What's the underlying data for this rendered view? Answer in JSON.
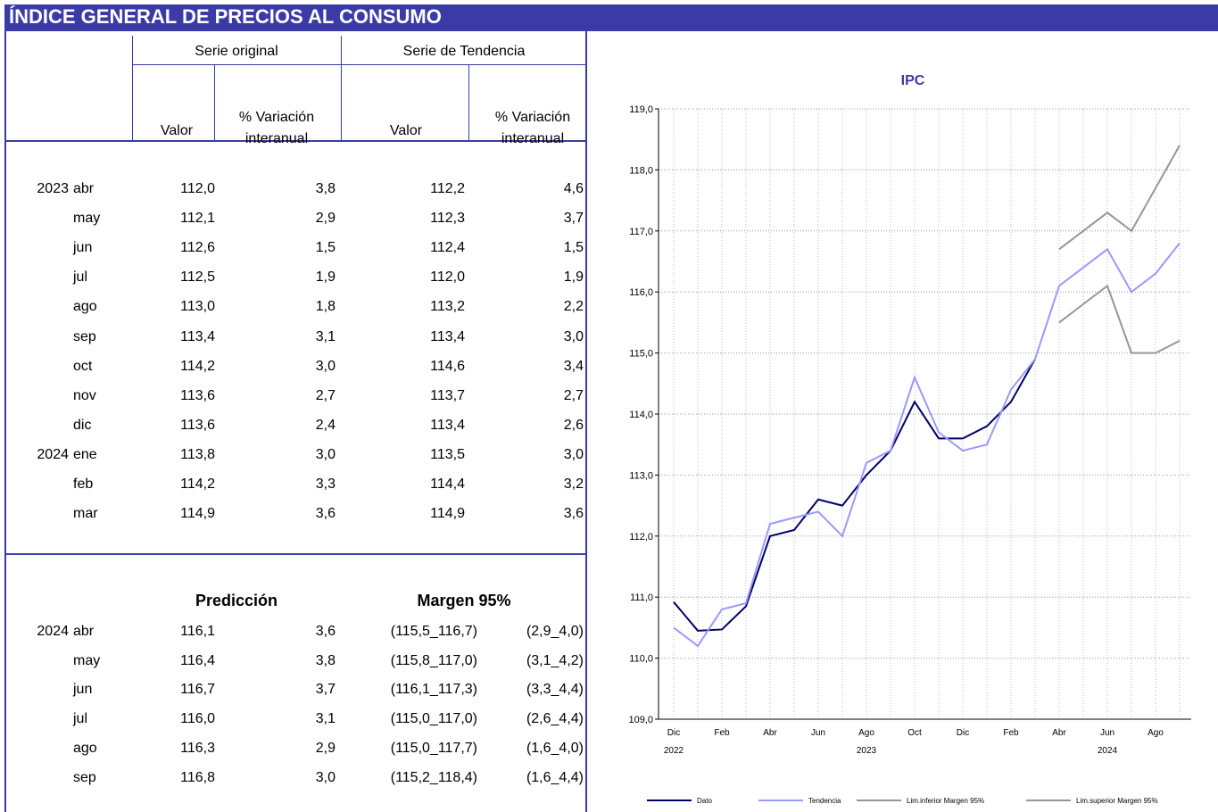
{
  "header": {
    "title": "ÍNDICE GENERAL DE PRECIOS AL CONSUMO"
  },
  "table": {
    "groups": [
      "Serie original",
      "Serie de Tendencia"
    ],
    "columns": [
      "Valor",
      "% Variación\ninteranual",
      "Valor",
      "% Variación\ninteranual"
    ],
    "rows": [
      [
        "2023",
        "abr",
        "112,0",
        "3,8",
        "112,2",
        "4,6"
      ],
      [
        null,
        "may",
        "112,1",
        "2,9",
        "112,3",
        "3,7"
      ],
      [
        null,
        "jun",
        "112,6",
        "1,5",
        "112,4",
        "1,5"
      ],
      [
        null,
        "jul",
        "112,5",
        "1,9",
        "112,0",
        "1,9"
      ],
      [
        null,
        "ago",
        "113,0",
        "1,8",
        "113,2",
        "2,2"
      ],
      [
        null,
        "sep",
        "113,4",
        "3,1",
        "113,4",
        "3,0"
      ],
      [
        null,
        "oct",
        "114,2",
        "3,0",
        "114,6",
        "3,4"
      ],
      [
        null,
        "nov",
        "113,6",
        "2,7",
        "113,7",
        "2,7"
      ],
      [
        null,
        "dic",
        "113,6",
        "2,4",
        "113,4",
        "2,6"
      ],
      [
        "2024",
        "ene",
        "113,8",
        "3,0",
        "113,5",
        "3,0"
      ],
      [
        null,
        "feb",
        "114,2",
        "3,3",
        "114,4",
        "3,2"
      ],
      [
        null,
        "mar",
        "114,9",
        "3,6",
        "114,9",
        "3,6"
      ]
    ]
  },
  "prediction": {
    "headers": [
      "Predicción",
      "Margen 95%"
    ],
    "rows": [
      [
        "2024",
        "abr",
        "116,1",
        "3,6",
        "(115,5_116,7)",
        "(2,9_4,0)"
      ],
      [
        null,
        "may",
        "116,4",
        "3,8",
        "(115,8_117,0)",
        "(3,1_4,2)"
      ],
      [
        null,
        "jun",
        "116,7",
        "3,7",
        "(116,1_117,3)",
        "(3,3_4,4)"
      ],
      [
        null,
        "jul",
        "116,0",
        "3,1",
        "(115,0_117,0)",
        "(2,6_4,4)"
      ],
      [
        null,
        "ago",
        "116,3",
        "2,9",
        "(115,0_117,7)",
        "(1,6_4,0)"
      ],
      [
        null,
        "sep",
        "116,8",
        "3,0",
        "(115,2_118,4)",
        "(1,6_4,4)"
      ]
    ]
  },
  "chart_data": {
    "type": "line",
    "title": "IPC",
    "categories": [
      "Dic",
      null,
      "Feb",
      null,
      "Abr",
      null,
      "Jun",
      null,
      "Ago",
      null,
      "Oct",
      null,
      "Dic",
      null,
      "Feb",
      null,
      "Abr",
      null,
      "Jun",
      null,
      "Ago",
      null
    ],
    "year_categories": [
      "2022",
      null,
      null,
      null,
      null,
      null,
      null,
      null,
      "2023",
      null,
      null,
      null,
      null,
      null,
      null,
      null,
      null,
      null,
      "2024",
      null,
      null,
      null
    ],
    "ylim": [
      109,
      119
    ],
    "yticks": [
      {
        "value": 109,
        "label": "109,0"
      },
      {
        "value": 110,
        "label": "110,0"
      },
      {
        "value": 111,
        "label": "111,0"
      },
      {
        "value": 112,
        "label": "112,0"
      },
      {
        "value": 113,
        "label": "113,0"
      },
      {
        "value": 114,
        "label": "114,0"
      },
      {
        "value": 115,
        "label": "115,0"
      },
      {
        "value": 116,
        "label": "116,0"
      },
      {
        "value": 117,
        "label": "117,0"
      },
      {
        "value": 118,
        "label": "118,0"
      },
      {
        "value": 119,
        "label": "119,0"
      }
    ],
    "grid": true,
    "legend": "bottom",
    "series": [
      {
        "name": "Dato",
        "color": "#000066",
        "values": [
          110.92,
          110.45,
          110.47,
          110.85,
          112.0,
          112.1,
          112.6,
          112.5,
          113.0,
          113.4,
          114.2,
          113.6,
          113.6,
          113.8,
          114.2,
          114.9,
          null,
          null,
          null,
          null,
          null,
          null
        ]
      },
      {
        "name": "Tendencia",
        "color": "#9999ff",
        "values": [
          110.5,
          110.2,
          110.8,
          110.9,
          112.2,
          112.3,
          112.4,
          112.0,
          113.2,
          113.4,
          114.6,
          113.7,
          113.4,
          113.5,
          114.4,
          114.9,
          116.1,
          116.4,
          116.7,
          116.0,
          116.3,
          116.8
        ]
      },
      {
        "name": "Lim.inferior Margen 95%",
        "color": "#969696",
        "values": [
          null,
          null,
          null,
          null,
          null,
          null,
          null,
          null,
          null,
          null,
          null,
          null,
          null,
          null,
          null,
          null,
          115.5,
          115.8,
          116.1,
          115.0,
          115.0,
          115.2
        ]
      },
      {
        "name": "Lim.superior Margen 95%",
        "color": "#969696",
        "values": [
          null,
          null,
          null,
          null,
          null,
          null,
          null,
          null,
          null,
          null,
          null,
          null,
          null,
          null,
          null,
          null,
          116.7,
          117.0,
          117.3,
          117.0,
          117.7,
          118.4
        ]
      }
    ]
  }
}
